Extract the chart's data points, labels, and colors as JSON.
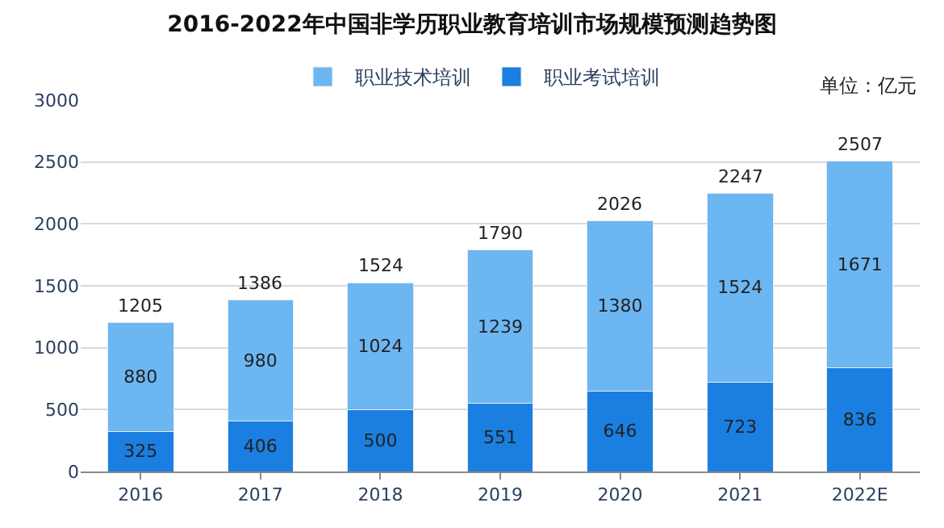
{
  "chart_data": {
    "type": "bar",
    "title": "2016-2022年中国非学历职业教育培训市场规模预测趋势图",
    "categories": [
      "2016",
      "2017",
      "2018",
      "2019",
      "2020",
      "2021",
      "2022E"
    ],
    "series": [
      {
        "name": "职业考试培训",
        "color": "#1a7fe0",
        "values": [
          325,
          406,
          500,
          551,
          646,
          723,
          836
        ]
      },
      {
        "name": "职业技术培训",
        "color": "#6cb6f2",
        "values": [
          880,
          980,
          1024,
          1239,
          1380,
          1524,
          1671
        ]
      }
    ],
    "stacked": true,
    "data_labels": true,
    "totals": [
      "1205",
      "1386",
      "1524",
      "1790",
      "2026",
      "2247",
      "2507"
    ],
    "ylim": [
      0,
      3000
    ],
    "yticks": [
      0,
      500,
      1000,
      1500,
      2000,
      2500,
      3000
    ],
    "grid": "y",
    "legend": "top",
    "annotations": [
      "单位：亿元"
    ]
  }
}
